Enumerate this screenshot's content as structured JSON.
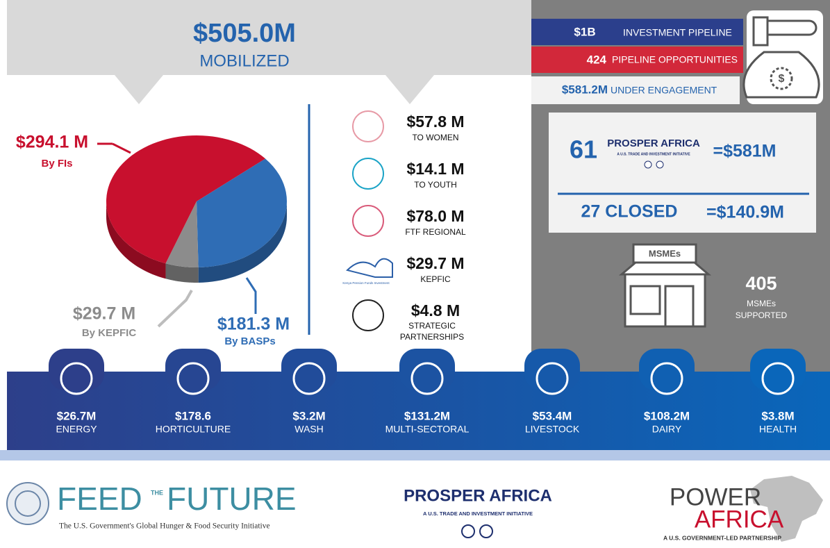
{
  "header": {
    "amount": "$505.0M",
    "label": "MOBILIZED"
  },
  "pie": {
    "slices": [
      {
        "value": 294.1,
        "value_label": "$294.1 M",
        "label": "By FIs",
        "color": "#c8102e"
      },
      {
        "value": 181.3,
        "value_label": "$181.3 M",
        "label": "By BASPs",
        "color": "#2f6db5"
      },
      {
        "value": 29.7,
        "value_label": "$29.7 M",
        "label": "By KEPFIC",
        "color": "#8c8c8c"
      }
    ]
  },
  "breakdown": [
    {
      "amount": "$57.8 M",
      "label": "TO WOMEN"
    },
    {
      "amount": "$14.1 M",
      "label": "TO YOUTH"
    },
    {
      "amount": "$78.0 M",
      "label": "FTF REGIONAL"
    },
    {
      "amount": "$29.7 M",
      "label": "KEPFIC",
      "logo": "Kenya Pension Funds Investment"
    },
    {
      "amount": "$4.8 M",
      "label": "STRATEGIC PARTNERSHIPS"
    }
  ],
  "pipeline": [
    {
      "amount": "$1B",
      "label": "INVESTMENT PIPELINE"
    },
    {
      "amount": "424",
      "label": "PIPELINE OPPORTUNITIES"
    },
    {
      "amount": "$581.2M",
      "label": "UNDER ENGAGEMENT"
    }
  ],
  "prosper": {
    "count": "61",
    "logo": "PROSPER AFRICA",
    "logo_sub": "A U.S. TRADE AND INVESTMENT INITIATIVE",
    "total": "=$581M",
    "closed": "27 CLOSED",
    "closed_total": "=$140.9M"
  },
  "msmes": {
    "sign": "MSMEs",
    "count": "405",
    "label_1": "MSMEs",
    "label_2": "SUPPORTED"
  },
  "sectors": [
    {
      "amount": "$26.7M",
      "label": "ENERGY"
    },
    {
      "amount": "$178.6",
      "label": "HORTICULTURE"
    },
    {
      "amount": "$3.2M",
      "label": "WASH"
    },
    {
      "amount": "$131.2M",
      "label": "MULTI-SECTORAL"
    },
    {
      "amount": "$53.4M",
      "label": "LIVESTOCK"
    },
    {
      "amount": "$108.2M",
      "label": "DAIRY"
    },
    {
      "amount": "$3.8M",
      "label": "HEALTH"
    }
  ],
  "footer": {
    "feed": "FEED",
    "the": "THE",
    "future": "FUTURE",
    "feed_sub": "The U.S. Government's Global Hunger & Food Security Initiative",
    "prosper": "PROSPER AFRICA",
    "prosper_sub": "A U.S. TRADE AND INVESTMENT INITIATIVE",
    "power": "POWER",
    "africa": "AFRICA",
    "power_sub": "A U.S. GOVERNMENT-LED PARTNERSHIP"
  }
}
